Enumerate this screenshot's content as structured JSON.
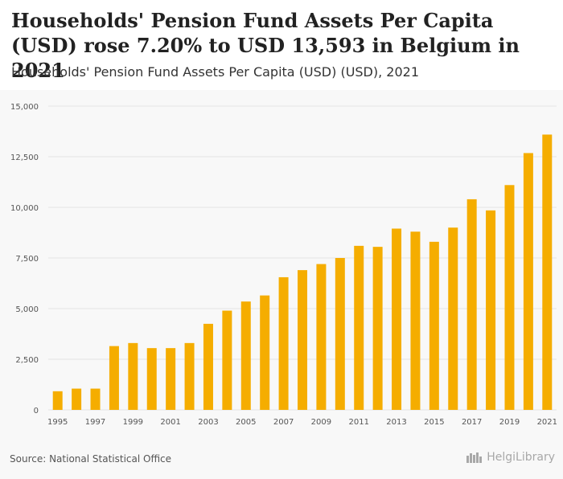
{
  "header": {
    "title": "Households' Pension Fund Assets Per Capita (USD) rose 7.20% to USD 13,593 in Belgium in 2021",
    "subtitle": "Households' Pension Fund Assets Per Capita (USD) (USD), 2021"
  },
  "footer": {
    "source": "Source: National Statistical Office",
    "brand": "HelgiLibrary"
  },
  "colors": {
    "bar": "#f5ad00",
    "grid": "#e4e4e4",
    "tick_text": "#555555"
  },
  "chart_data": {
    "type": "bar",
    "title": "Households' Pension Fund Assets Per Capita (USD) rose 7.20% to USD 13,593 in Belgium in 2021",
    "xlabel": "",
    "ylabel": "",
    "ylim": [
      0,
      15000
    ],
    "yticks": [
      0,
      2500,
      5000,
      7500,
      10000,
      12500,
      15000
    ],
    "ytick_labels": [
      "0",
      "2,500",
      "5,000",
      "7,500",
      "10,000",
      "12,500",
      "15,000"
    ],
    "categories": [
      "1995",
      "1996",
      "1997",
      "1998",
      "1999",
      "2000",
      "2001",
      "2002",
      "2003",
      "2004",
      "2005",
      "2006",
      "2007",
      "2008",
      "2009",
      "2010",
      "2011",
      "2012",
      "2013",
      "2014",
      "2015",
      "2016",
      "2017",
      "2018",
      "2019",
      "2020",
      "2021"
    ],
    "xtick_labels": [
      "1995",
      "1997",
      "1999",
      "2001",
      "2003",
      "2005",
      "2007",
      "2009",
      "2011",
      "2013",
      "2015",
      "2017",
      "2019",
      "2021"
    ],
    "values": [
      920,
      1050,
      1050,
      3150,
      3300,
      3050,
      3050,
      3300,
      4250,
      4900,
      5350,
      5650,
      6550,
      6900,
      7200,
      7500,
      8100,
      8050,
      8950,
      8800,
      8300,
      9000,
      10400,
      9850,
      11100,
      12680,
      13593
    ],
    "legend": "none",
    "grid": true
  }
}
